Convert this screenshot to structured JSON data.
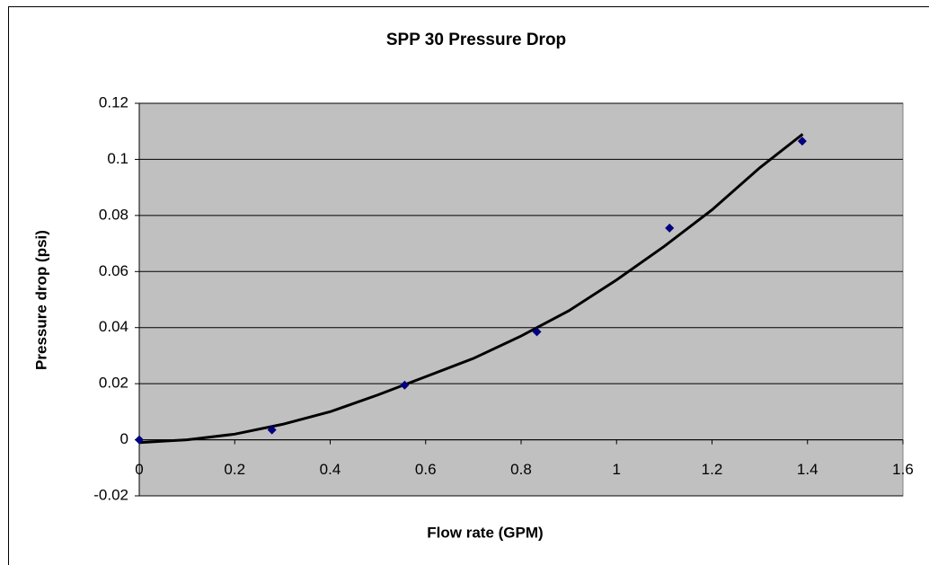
{
  "chart_data": {
    "type": "scatter",
    "title": "SPP 30 Pressure Drop",
    "x_label": "Flow rate (GPM)",
    "y_label": "Pressure drop (psi)",
    "series": [
      {
        "color": "#000080",
        "x": [
          0,
          0.278,
          0.556,
          0.833,
          1.111,
          1.389
        ],
        "values": [
          0,
          0.0035,
          0.0195,
          0.0385,
          0.0755,
          0.1065
        ]
      }
    ],
    "trendline": {
      "color": "#000000",
      "x": [
        0,
        0.05,
        0.1,
        0.2,
        0.3,
        0.4,
        0.5,
        0.6,
        0.7,
        0.8,
        0.9,
        1,
        1.1,
        1.2,
        1.3,
        1.39
      ],
      "values": [
        -0.001,
        -0.0005,
        0,
        0.002,
        0.0055,
        0.01,
        0.016,
        0.0225,
        0.029,
        0.037,
        0.046,
        0.057,
        0.069,
        0.082,
        0.097,
        0.109
      ]
    },
    "xlim": [
      0,
      1.6
    ],
    "xticks": [
      0,
      0.2,
      0.4,
      0.6,
      0.8,
      1,
      1.2,
      1.4,
      1.6
    ],
    "ylim": [
      -0.02,
      0.12
    ],
    "yticks": [
      -0.02,
      0,
      0.02,
      0.04,
      0.06,
      0.08,
      0.1,
      0.12
    ],
    "grid": true,
    "plot_background": "#c0c0c0"
  }
}
